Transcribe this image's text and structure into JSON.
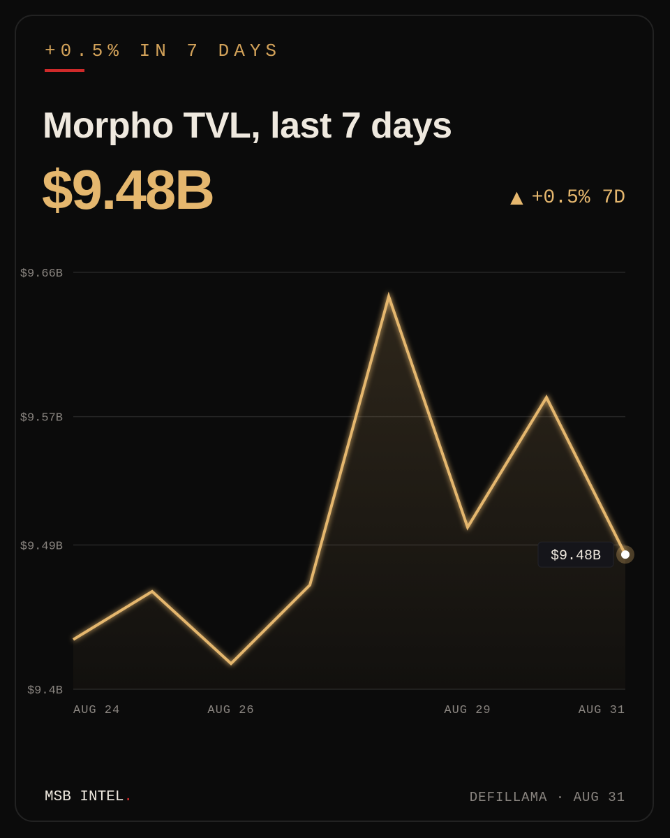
{
  "header": {
    "kicker": "+0.5% IN 7 DAYS",
    "title": "Morpho TVL, last 7 days",
    "value": "$9.48B",
    "change_arrow": "▲",
    "change": "+0.5% 7D"
  },
  "footer": {
    "brand": "MSB INTEL",
    "brand_dot": ".",
    "source": "DEFILLAMA · AUG 31"
  },
  "colors": {
    "accent": "#e5b76e",
    "rule": "#cf2a2a",
    "grid": "#262626",
    "muted": "#8a8580"
  },
  "chart_data": {
    "type": "area",
    "x": [
      "Aug 24",
      "Aug 25",
      "Aug 26",
      "Aug 27",
      "Aug 28",
      "Aug 29",
      "Aug 30",
      "Aug 31"
    ],
    "values": [
      9.431,
      9.461,
      9.416,
      9.465,
      9.645,
      9.501,
      9.582,
      9.484
    ],
    "ylim": [
      9.4,
      9.66
    ],
    "yticks": [
      9.4,
      9.49,
      9.57,
      9.66
    ],
    "ytick_labels": [
      "$9.4B",
      "$9.49B",
      "$9.57B",
      "$9.66B"
    ],
    "xtick_labels": [
      {
        "index": 0,
        "label": "AUG 24"
      },
      {
        "index": 2,
        "label": "AUG 26"
      },
      {
        "index": 5,
        "label": "AUG 29"
      },
      {
        "index": 7,
        "label": "AUG 31"
      }
    ],
    "end_label": "$9.48B",
    "grid": true
  }
}
